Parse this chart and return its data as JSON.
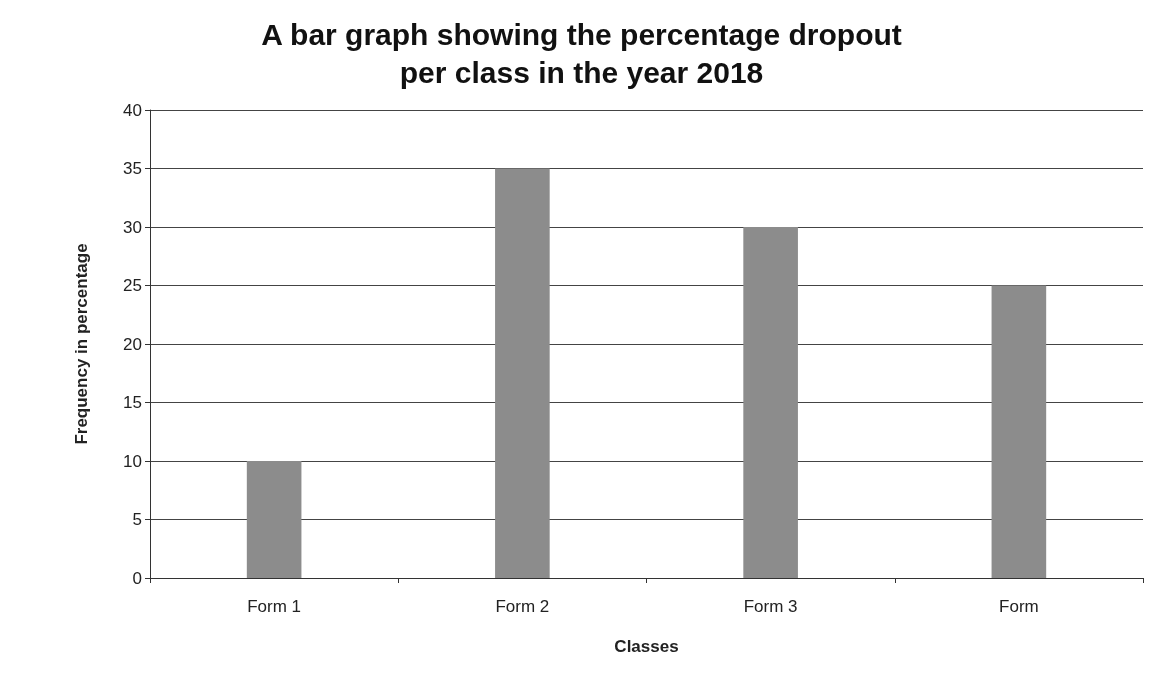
{
  "chart_data": {
    "type": "bar",
    "title": "A bar graph showing the percentage dropout\nper class in the year 2018",
    "xlabel": "Classes",
    "ylabel": "Frequency in percentage",
    "categories": [
      "Form 1",
      "Form 2",
      "Form 3",
      "Form"
    ],
    "values": [
      10,
      35,
      30,
      25
    ],
    "color": "#8c8c8c",
    "ylim": [
      0,
      40
    ],
    "yticks": [
      0,
      5,
      10,
      15,
      20,
      25,
      30,
      35,
      40
    ],
    "grid": "y"
  }
}
